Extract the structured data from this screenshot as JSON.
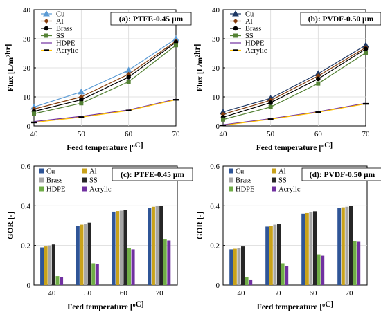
{
  "chart_data": [
    {
      "type": "line",
      "title": "(a): PTFE-0.45 µm",
      "xlabel": "Feed temperature [oC]",
      "ylabel": "Flux [L/m²hr]",
      "x": [
        40,
        50,
        60,
        70
      ],
      "xlim": [
        40,
        70
      ],
      "ylim": [
        0,
        40
      ],
      "xticks": [
        "40",
        "50",
        "60",
        "70"
      ],
      "yticks": [
        "0",
        "10",
        "20",
        "30",
        "40"
      ],
      "legend_position": "top-left",
      "series": [
        {
          "name": "Cu",
          "values": [
            6.5,
            11.7,
            19.2,
            30.0
          ],
          "color": "#5b9bd5"
        },
        {
          "name": "Al",
          "values": [
            5.8,
            10.0,
            17.8,
            29.2
          ],
          "color": "#843c0c"
        },
        {
          "name": "Brass",
          "values": [
            5.0,
            9.0,
            16.8,
            28.8
          ],
          "color": "#000000"
        },
        {
          "name": "SS",
          "values": [
            4.2,
            7.8,
            15.2,
            27.8
          ],
          "color": "#548235"
        },
        {
          "name": "HDPE",
          "values": [
            1.5,
            3.3,
            5.5,
            9.2
          ],
          "color": "#7030a0"
        },
        {
          "name": "Acrylic",
          "values": [
            1.2,
            3.0,
            5.3,
            9.0
          ],
          "color": "#ffc000"
        }
      ]
    },
    {
      "type": "line",
      "title": "(b): PVDF-0.50 µm",
      "xlabel": "Feed temperature [oC]",
      "ylabel": "Flux [L/m²hr]",
      "x": [
        40,
        50,
        60,
        70
      ],
      "xlim": [
        40,
        70
      ],
      "ylim": [
        0,
        40
      ],
      "xticks": [
        "40",
        "50",
        "60",
        "70"
      ],
      "yticks": [
        "0",
        "10",
        "20",
        "30",
        "40"
      ],
      "legend_position": "top-left",
      "series": [
        {
          "name": "Cu",
          "values": [
            4.8,
            9.5,
            18.0,
            27.8
          ],
          "color": "#1f3864"
        },
        {
          "name": "Al",
          "values": [
            4.0,
            8.8,
            17.2,
            27.0
          ],
          "color": "#843c0c"
        },
        {
          "name": "Brass",
          "values": [
            3.0,
            8.0,
            16.2,
            26.5
          ],
          "color": "#000000"
        },
        {
          "name": "SS",
          "values": [
            2.2,
            6.5,
            14.6,
            25.2
          ],
          "color": "#548235"
        },
        {
          "name": "HDPE",
          "values": [
            0.4,
            2.5,
            4.9,
            7.8
          ],
          "color": "#7030a0"
        },
        {
          "name": "Acrylic",
          "values": [
            0.2,
            2.3,
            4.7,
            7.6
          ],
          "color": "#ffc000"
        }
      ]
    },
    {
      "type": "bar",
      "title": "(c): PTFE-0.45 µm",
      "xlabel": "Feed temperature [oC]",
      "ylabel": "GOR [-]",
      "categories": [
        "40",
        "50",
        "60",
        "70"
      ],
      "ylim": [
        0,
        0.6
      ],
      "yticks": [
        "0",
        "0.2",
        "0.4",
        "0.6"
      ],
      "legend_position": "top-left",
      "series": [
        {
          "name": "Cu",
          "values": [
            0.19,
            0.3,
            0.37,
            0.39
          ],
          "color": "#2f5597"
        },
        {
          "name": "Al",
          "values": [
            0.195,
            0.305,
            0.373,
            0.395
          ],
          "color": "#c9a21a"
        },
        {
          "name": "Brass",
          "values": [
            0.2,
            0.31,
            0.375,
            0.398
          ],
          "color": "#a6a6a6"
        },
        {
          "name": "SS",
          "values": [
            0.205,
            0.315,
            0.38,
            0.4
          ],
          "color": "#262626"
        },
        {
          "name": "HDPE",
          "values": [
            0.045,
            0.11,
            0.185,
            0.23
          ],
          "color": "#70ad47"
        },
        {
          "name": "Acrylic",
          "values": [
            0.04,
            0.105,
            0.18,
            0.225
          ],
          "color": "#7030a0"
        }
      ]
    },
    {
      "type": "bar",
      "title": "(d): PVDF-0.50 µm",
      "xlabel": "Feed temperature [oC]",
      "ylabel": "GOR [-]",
      "categories": [
        "40",
        "50",
        "60",
        "70"
      ],
      "ylim": [
        0,
        0.6
      ],
      "yticks": [
        "0",
        "0.2",
        "0.4",
        "0.6"
      ],
      "legend_position": "top-left",
      "series": [
        {
          "name": "Cu",
          "values": [
            0.18,
            0.295,
            0.36,
            0.39
          ],
          "color": "#2f5597"
        },
        {
          "name": "Al",
          "values": [
            0.183,
            0.298,
            0.363,
            0.392
          ],
          "color": "#c9a21a"
        },
        {
          "name": "Brass",
          "values": [
            0.188,
            0.305,
            0.367,
            0.395
          ],
          "color": "#a6a6a6"
        },
        {
          "name": "SS",
          "values": [
            0.195,
            0.31,
            0.372,
            0.4
          ],
          "color": "#262626"
        },
        {
          "name": "HDPE",
          "values": [
            0.04,
            0.11,
            0.155,
            0.22
          ],
          "color": "#70ad47"
        },
        {
          "name": "Acrylic",
          "values": [
            0.028,
            0.097,
            0.148,
            0.218
          ],
          "color": "#7030a0"
        }
      ]
    }
  ]
}
